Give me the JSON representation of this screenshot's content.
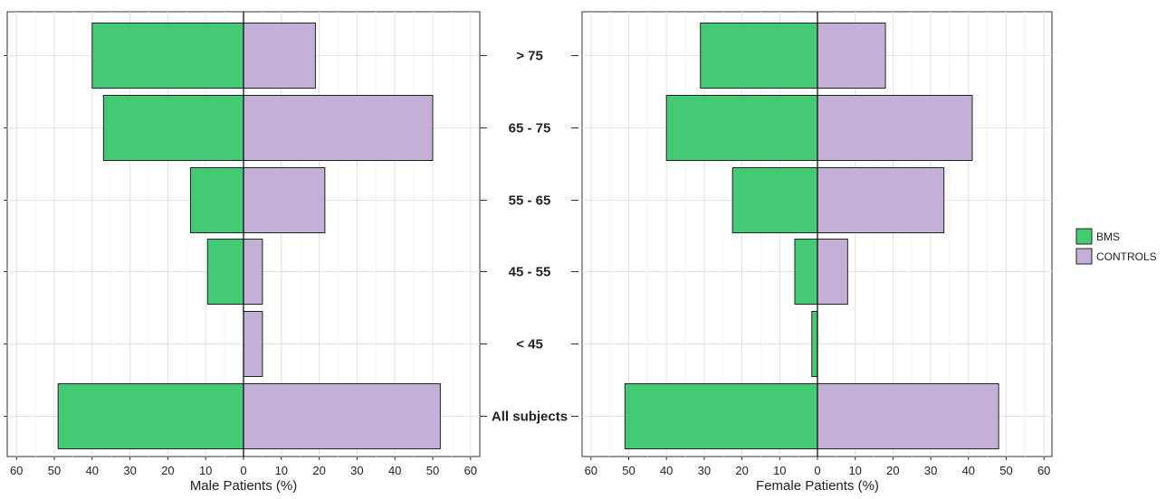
{
  "chart_data": {
    "type": "bar",
    "categories": [
      "> 75",
      "65 - 75",
      "55 - 65",
      "45 - 55",
      "< 45",
      "All subjects"
    ],
    "xticks": [
      60,
      50,
      40,
      30,
      20,
      10,
      0,
      10,
      20,
      30,
      40,
      50,
      60
    ],
    "xlim": [
      -60,
      60
    ],
    "grid": true,
    "legend": {
      "position": "right",
      "entries": [
        {
          "name": "BMS",
          "color": "#44c975"
        },
        {
          "name": "CONTROLS",
          "color": "#c4afd6"
        }
      ]
    },
    "panels": [
      {
        "xlabel": "Male Patients (%)",
        "series": [
          {
            "name": "BMS",
            "side": "left",
            "color": "#44c975",
            "values": [
              40,
              37,
              14,
              9.5,
              0,
              49
            ]
          },
          {
            "name": "CONTROLS",
            "side": "right",
            "color": "#c4afd6",
            "values": [
              19,
              50,
              21.5,
              5,
              5,
              52
            ]
          }
        ]
      },
      {
        "xlabel": "Female Patients (%)",
        "series": [
          {
            "name": "BMS",
            "side": "left",
            "color": "#44c975",
            "values": [
              31,
              40,
              22.5,
              6,
              1.5,
              51
            ]
          },
          {
            "name": "CONTROLS",
            "side": "right",
            "color": "#c4afd6",
            "values": [
              18,
              41,
              33.5,
              8,
              0,
              48
            ]
          }
        ]
      }
    ]
  }
}
